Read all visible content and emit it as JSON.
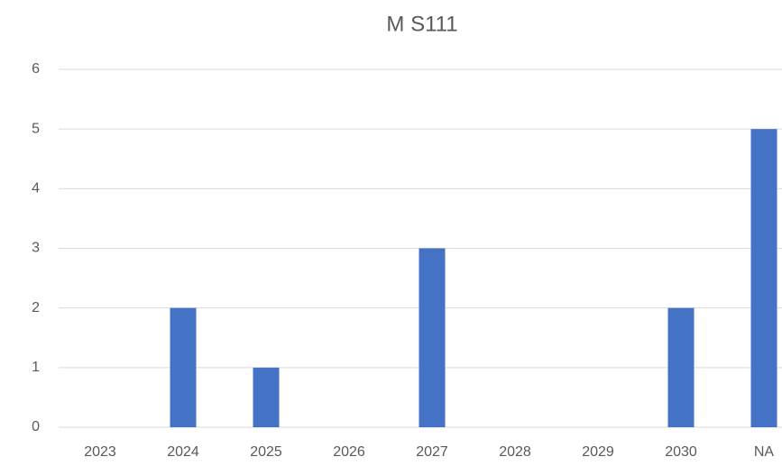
{
  "chart_data": {
    "type": "bar",
    "title": "M S111",
    "categories": [
      "2023",
      "2024",
      "2025",
      "2026",
      "2027",
      "2028",
      "2029",
      "2030",
      "NA"
    ],
    "values": [
      0,
      2,
      1,
      0,
      3,
      0,
      0,
      2,
      5
    ],
    "color": "#4472c4",
    "ylim": [
      0,
      6
    ],
    "yticks": [
      0,
      1,
      2,
      3,
      4,
      5,
      6
    ],
    "grid": true
  }
}
